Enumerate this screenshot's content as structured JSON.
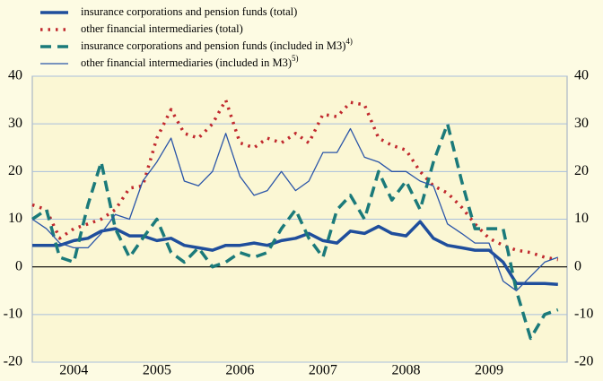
{
  "chart_data": {
    "type": "line",
    "x": [
      2004,
      2004.17,
      2004.33,
      2004.5,
      2004.67,
      2004.83,
      2005,
      2005.17,
      2005.33,
      2005.5,
      2005.67,
      2005.83,
      2006,
      2006.17,
      2006.33,
      2006.5,
      2006.67,
      2006.83,
      2007,
      2007.17,
      2007.33,
      2007.5,
      2007.67,
      2007.83,
      2008,
      2008.17,
      2008.33,
      2008.5,
      2008.67,
      2008.83,
      2009,
      2009.17,
      2009.33,
      2009.5,
      2009.67,
      2009.83,
      2010,
      2010.17,
      2010.33
    ],
    "xlim": [
      2004,
      2010.44
    ],
    "xticks": [
      {
        "value": 2004.5,
        "label": "2004"
      },
      {
        "value": 2005.5,
        "label": "2005"
      },
      {
        "value": 2006.5,
        "label": "2006"
      },
      {
        "value": 2007.5,
        "label": "2007"
      },
      {
        "value": 2008.5,
        "label": "2008"
      },
      {
        "value": 2009.5,
        "label": "2009"
      }
    ],
    "ylim": [
      -20,
      40
    ],
    "yticks": [
      -20,
      -10,
      0,
      10,
      20,
      30,
      40
    ],
    "grid": true,
    "series": [
      {
        "name": "insurance corporations and pension funds (total)",
        "color": "#1f4e9c",
        "style": "solid",
        "width": 3.5,
        "values": [
          4.5,
          4.5,
          4.5,
          5.5,
          6,
          7.5,
          8,
          6.5,
          6.5,
          5.5,
          6,
          4.5,
          4,
          3.5,
          4.5,
          4.5,
          5,
          4.5,
          5.5,
          6,
          7,
          5.5,
          5,
          7.5,
          7,
          8.5,
          7,
          6.5,
          9.5,
          6,
          4.5,
          4,
          3.5,
          3.5,
          1,
          -3.5,
          -3.5,
          -3.5,
          -3.7
        ]
      },
      {
        "name": "other financial intermediaries (total)",
        "color": "#c0282d",
        "style": "dotted",
        "width": 3.5,
        "values": [
          13,
          12,
          6,
          8,
          9,
          10,
          12,
          16.5,
          17,
          27,
          33,
          28,
          27,
          30,
          35,
          26,
          25,
          27,
          26,
          28,
          26,
          32,
          31.5,
          34.5,
          34,
          27,
          25.5,
          24.5,
          20,
          17,
          15.5,
          12.5,
          9,
          6,
          4.5,
          3.5,
          3,
          2,
          1.5
        ]
      },
      {
        "name": "insurance corporations and pension funds (included in M3)",
        "note": "4)",
        "color": "#1b7a7a",
        "style": "dashed",
        "width": 3.5,
        "values": [
          10,
          12,
          2,
          1,
          13,
          22,
          8,
          2,
          6,
          10,
          3,
          1,
          4,
          0,
          1,
          3,
          2,
          3,
          8,
          12,
          6,
          2,
          12,
          15,
          10,
          20,
          14,
          18,
          12,
          22,
          30,
          18,
          8,
          8,
          8,
          -5,
          -15,
          -10,
          -9
        ]
      },
      {
        "name": "other financial intermediaries (included in M3)",
        "note": "5)",
        "color": "#2a55a8",
        "style": "solid",
        "width": 1.3,
        "values": [
          10,
          8,
          5,
          4,
          4,
          7,
          11,
          10,
          18,
          22,
          27,
          18,
          17,
          20,
          28,
          19,
          15,
          16,
          20,
          16,
          18,
          24,
          24,
          29,
          23,
          22,
          20,
          20,
          18,
          17,
          9,
          7,
          5,
          5,
          -3,
          -5,
          -2,
          1,
          2
        ]
      }
    ]
  }
}
